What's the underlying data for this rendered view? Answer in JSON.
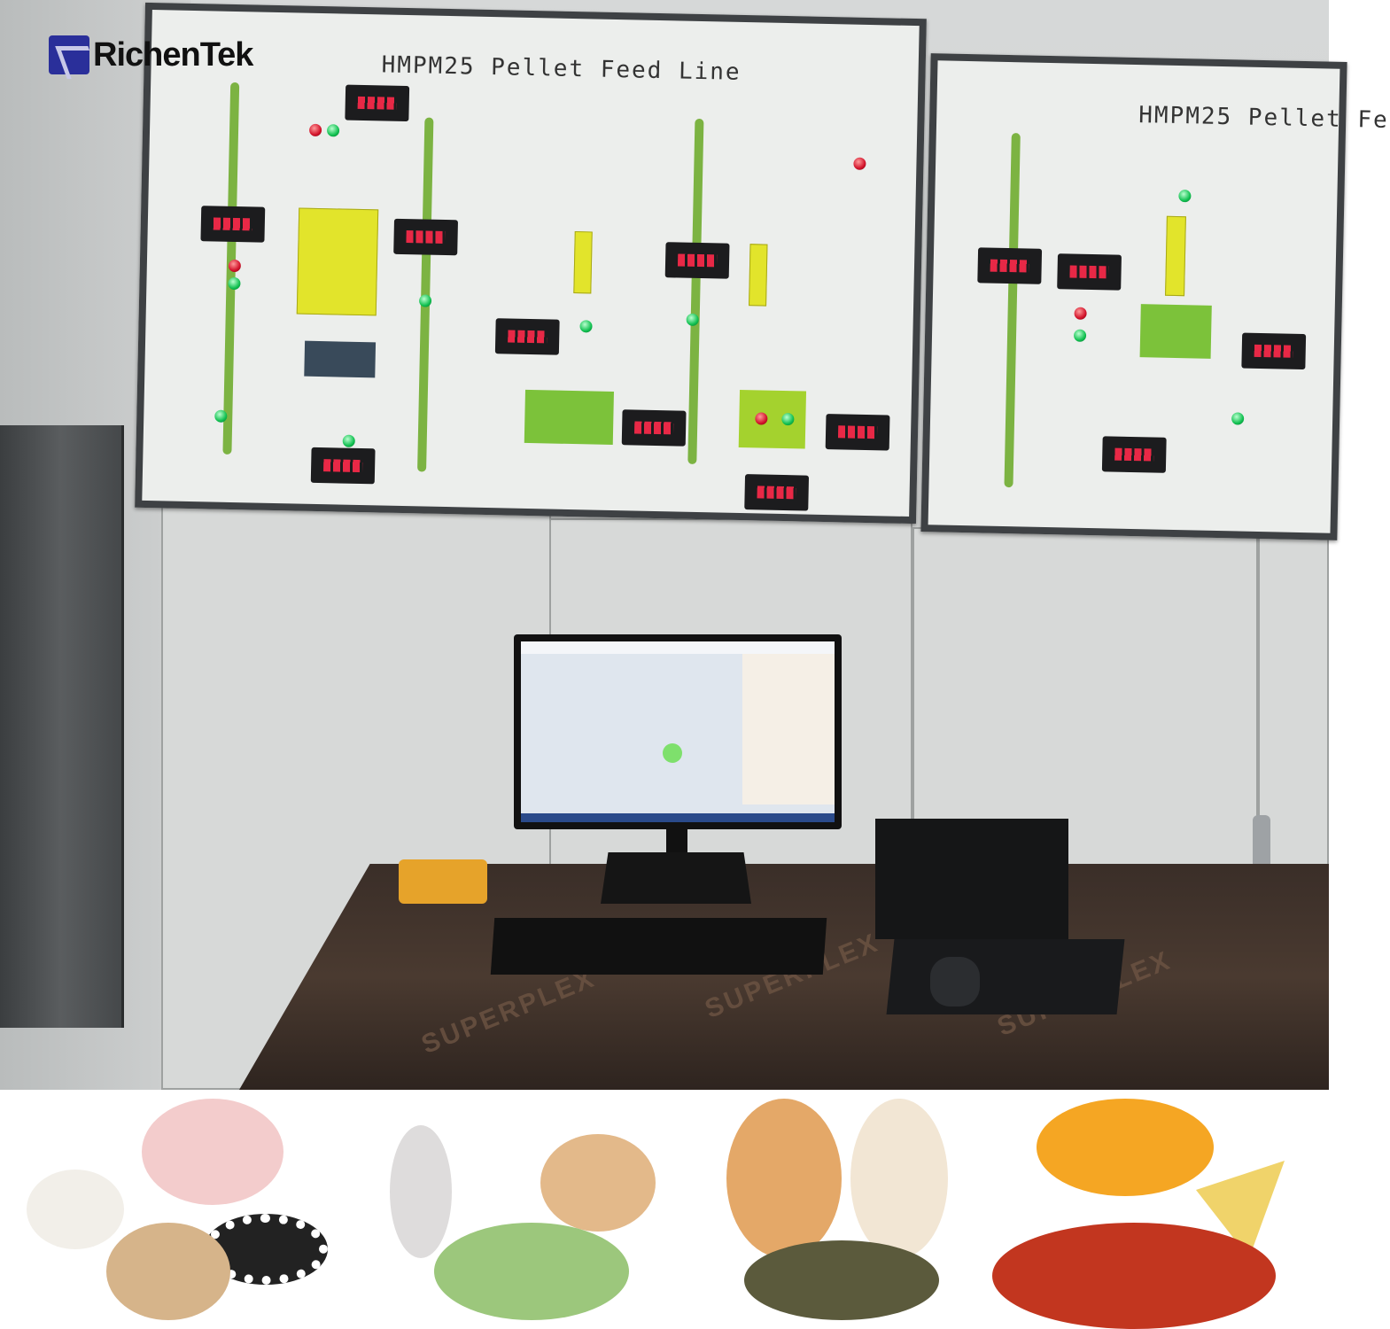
{
  "logo": {
    "text": "RichenTek",
    "colors": {
      "mark": "#2a2f9a",
      "text": "#111111"
    }
  },
  "panels": [
    {
      "title": "HMPM25 Pellet Feed  Line"
    },
    {
      "title": "HMPM25 Pellet Fe"
    }
  ],
  "desk": {
    "print": "SUPERPLEX"
  },
  "colors": {
    "pipe": "#7cb342",
    "bins": "#e2e42b",
    "led_green": "#10c050",
    "led_red": "#d2122a",
    "display": "#ff2a4a"
  },
  "bottom_strip": {
    "images": [
      "pig-goat-cow-with-pellets",
      "rabbit-chicken-with-green-pellets",
      "cat-dog-with-pet-food",
      "goldfish-with-fish-feed"
    ]
  }
}
